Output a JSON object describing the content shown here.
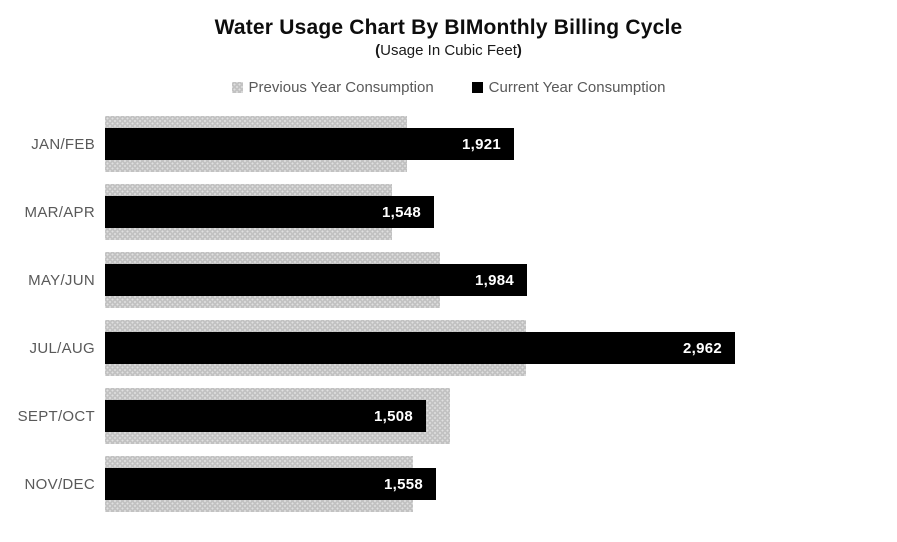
{
  "title": "Water Usage Chart By BIMonthly Billing Cycle",
  "subtitle": {
    "open": "(",
    "text": "Usage In Cubic Feet",
    "close": ")"
  },
  "legend": {
    "items": [
      {
        "label": "Previous Year Consumption",
        "color": "#c2c2c2",
        "fill": "dotted-texture"
      },
      {
        "label": "Current Year Consumption",
        "color": "#000000",
        "fill": "solid"
      }
    ],
    "position": "top-center"
  },
  "colors": {
    "background": "#ffffff",
    "title_text": "#0d0d0d",
    "axis_text": "#595959",
    "previous_year_bar": "#c2c2c2",
    "previous_year_dots": "#e0e0e0",
    "current_year_bar": "#000000",
    "value_label_text": "#ffffff"
  },
  "chart_data": {
    "type": "bar",
    "orientation": "horizontal",
    "title": "Water Usage Chart By BIMonthly Billing Cycle",
    "subtitle": "(Usage In Cubic Feet)",
    "value_unit": "cubic feet",
    "categories": [
      "JAN/FEB",
      "MAR/APR",
      "MAY/JUN",
      "JUL/AUG",
      "SEPT/OCT",
      "NOV/DEC"
    ],
    "series": [
      {
        "name": "Previous Year Consumption",
        "values": [
          1420,
          1350,
          1575,
          1980,
          1620,
          1450
        ],
        "values_estimated_from_bar_lengths": true,
        "color": "#c2c2c2"
      },
      {
        "name": "Current Year Consumption",
        "values": [
          1921,
          1548,
          1984,
          2962,
          1508,
          1558
        ],
        "labels": [
          "1,921",
          "1,548",
          "1,984",
          "2,962",
          "1,508",
          "1,558"
        ],
        "color": "#000000"
      }
    ],
    "xlabel": "",
    "ylabel": "",
    "xlim": [
      0,
      3722
    ],
    "grid": false,
    "axis_lines": false,
    "legend_position": "top",
    "data_labels": "current year series only, white bold, inside bar end"
  }
}
